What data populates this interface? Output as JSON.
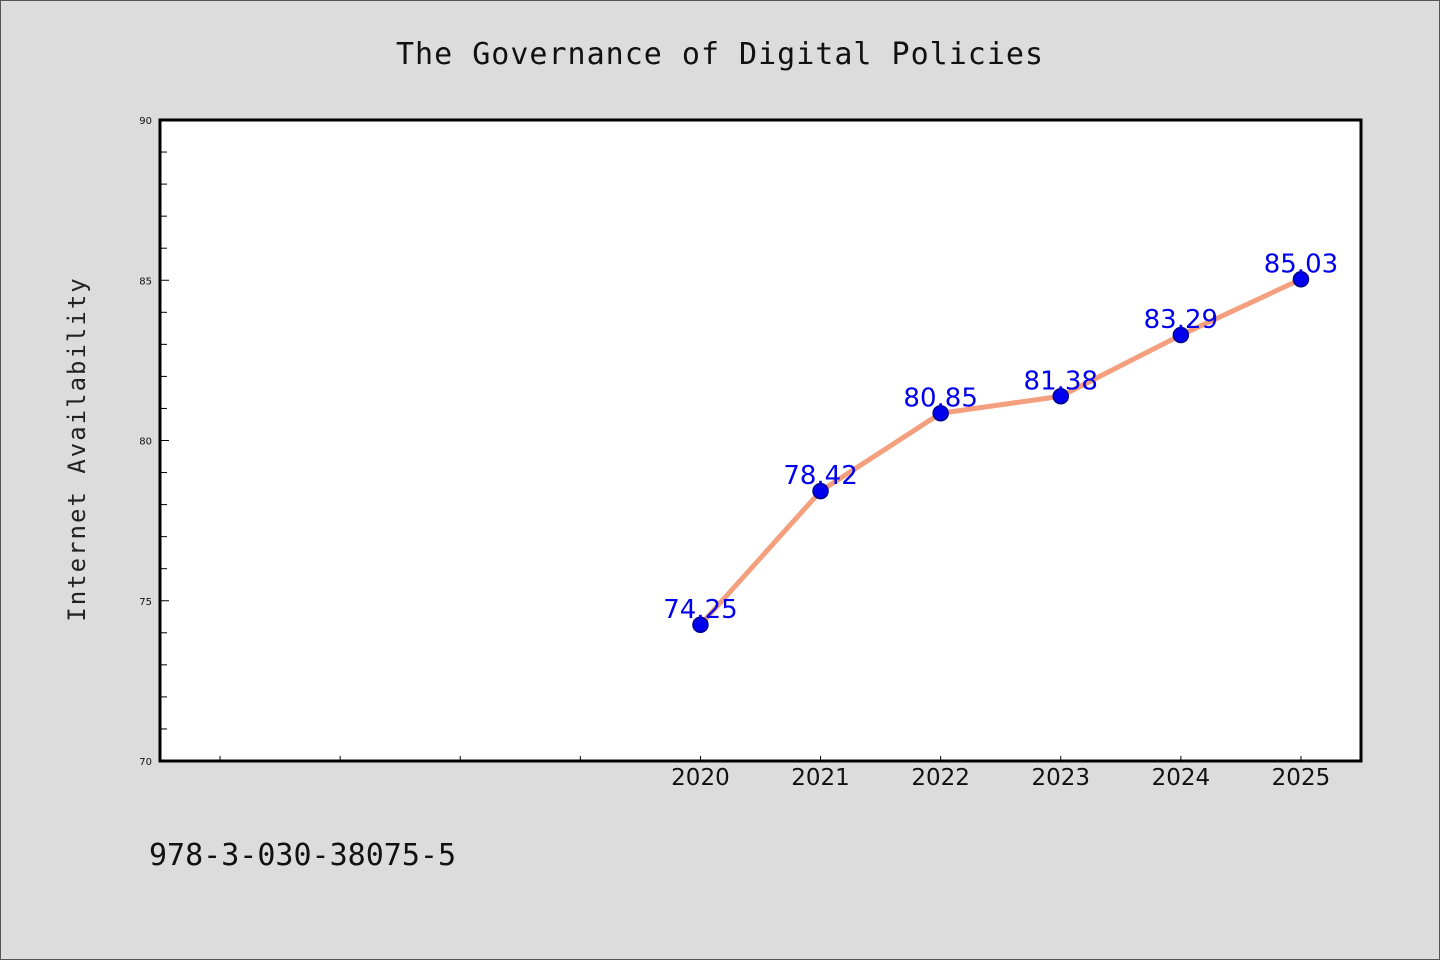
{
  "footer": {
    "isbn": "978-3-030-38075-5"
  },
  "colors": {
    "background": "#dcdcdc",
    "plot_background": "#ffffff",
    "line": "#f4a07e",
    "marker": "#0000ee",
    "data_label": "#0000ee",
    "axis": "#000000"
  },
  "chart_data": {
    "type": "line",
    "title": "The Governance of Digital Policies",
    "xlabel": "",
    "ylabel": "Internet Availability",
    "x": [
      2020,
      2021,
      2022,
      2023,
      2024,
      2025
    ],
    "x_tick_labels": [
      "2020",
      "2021",
      "2022",
      "2023",
      "2024",
      "2025"
    ],
    "xlim": [
      2015.5,
      2025.5
    ],
    "ylim": [
      70,
      90
    ],
    "y_ticks": [
      70,
      75,
      80,
      85,
      90
    ],
    "series": [
      {
        "values": [
          74.25,
          78.42,
          80.85,
          81.38,
          83.29,
          85.03
        ],
        "value_labels": [
          "74.25",
          "78.42",
          "80.85",
          "81.38",
          "83.29",
          "85.03"
        ],
        "marker": "circle"
      }
    ],
    "grid": false,
    "legend": "none"
  }
}
